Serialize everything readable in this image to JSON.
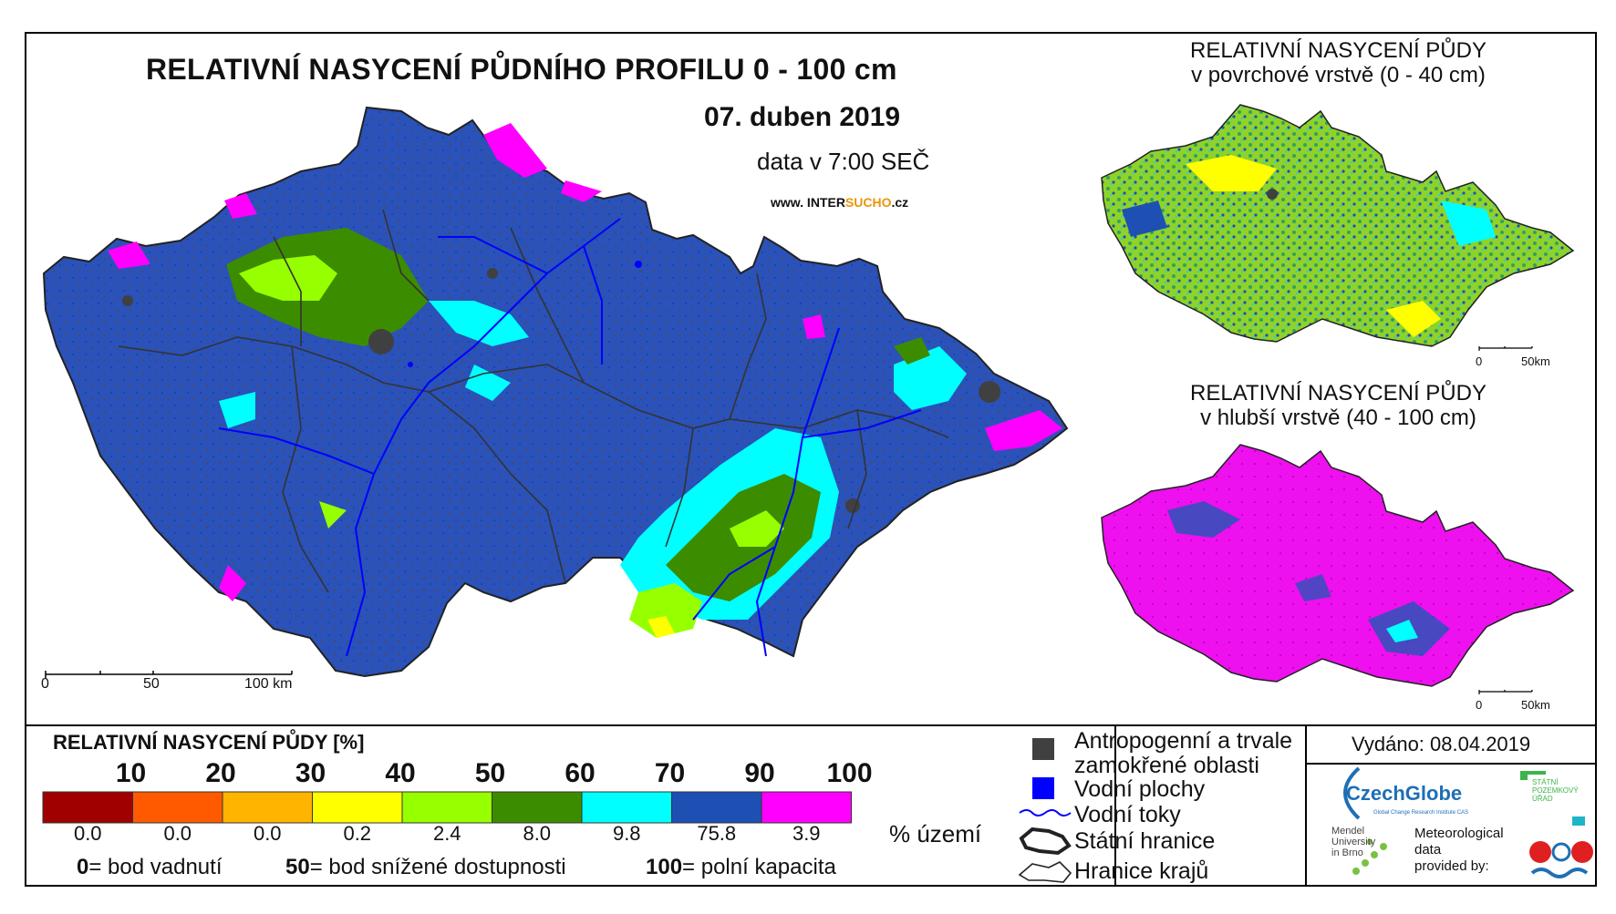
{
  "title": "RELATIVNÍ NASYCENÍ PŮDNÍHO PROFILU 0 - 100 cm",
  "date": "07. duben 2019",
  "data_time": "data v 7:00 SEČ",
  "website": {
    "prefix": "www. INTER",
    "highlight": "SUCHO",
    "suffix": ".cz"
  },
  "inset_top": {
    "line1": "RELATIVNÍ NASYCENÍ PŮDY",
    "line2": "v povrchové vrstvě (0 - 40 cm)"
  },
  "inset_bottom": {
    "line1": "RELATIVNÍ NASYCENÍ PŮDY",
    "line2": "v hlubší vrstvě (40 - 100 cm)"
  },
  "main_scale": {
    "l0": "0",
    "l1": "50",
    "l2": "100 km"
  },
  "inset_scale": {
    "l0": "0",
    "l1": "50km"
  },
  "legend": {
    "title": "RELATIVNÍ NASYCENÍ PŮDY [%]",
    "ticks": [
      "10",
      "20",
      "30",
      "40",
      "50",
      "60",
      "70",
      "90",
      "100"
    ],
    "classes": [
      {
        "color": "#a00000",
        "share": "0.0"
      },
      {
        "color": "#ff5a00",
        "share": "0.0"
      },
      {
        "color": "#ffb400",
        "share": "0.0"
      },
      {
        "color": "#ffff00",
        "share": "0.2"
      },
      {
        "color": "#96ff00",
        "share": "2.4"
      },
      {
        "color": "#3c8c00",
        "share": "8.0"
      },
      {
        "color": "#00ffff",
        "share": "9.8"
      },
      {
        "color": "#1e50b4",
        "share": "75.8"
      },
      {
        "color": "#ff00ff",
        "share": "3.9"
      }
    ],
    "unit": "% území",
    "notes": [
      {
        "value": "0",
        "text": "= bod vadnutí"
      },
      {
        "value": "50",
        "text": "= bod snížené dostupnosti"
      },
      {
        "value": "100",
        "text": "= polní kapacita"
      }
    ]
  },
  "map_legend": {
    "anthropogenic": "Antropogenní a trvale",
    "anthropogenic2": "zamokřené oblasti",
    "water_areas": "Vodní plochy",
    "rivers": "Vodní toky",
    "state_border": "Státní hranice",
    "region_border": "Hranice krajů"
  },
  "issued": "Vydáno: 08.04.2019",
  "logos": {
    "czechglobe": "CzechGlobe",
    "czechglobe_sub": "Global Change Research Institute CAS",
    "mendel": [
      "Mendel",
      "University",
      "in Brno"
    ],
    "spu": [
      "STÁTNÍ",
      "POZEMKOVÝ",
      "ÚŘAD"
    ],
    "met": [
      "Meteorological",
      "data",
      "provided by:"
    ]
  },
  "colors": {
    "anthropogenic": "#404040",
    "water": "#0000ff",
    "main_fill": "#2a52b8",
    "surface_fill": "#9acd32",
    "deep_fill": "#ee10ee"
  }
}
